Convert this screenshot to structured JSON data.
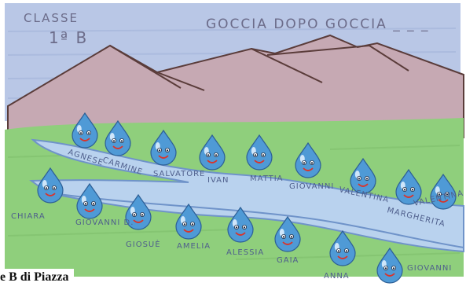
{
  "drawing": {
    "class_label": "CLASSE",
    "class_name": "1ª B",
    "title": "GOCCIA DOPO GOCCIA _ _ _",
    "palette": {
      "sky": "#b9c7e6",
      "mountain": "#c6a9b3",
      "mountain_outline": "#5a3c3a",
      "meadow": "#8fcf7c",
      "river": "#b9d2ee",
      "drop": "#4f9ad6",
      "smile": "#d9342b"
    },
    "names": [
      "AGNESE",
      "CARMINE",
      "SALVATORE",
      "IVAN",
      "MATTIA",
      "GIOVANNI",
      "VALENTINA",
      "MARGHERITA",
      "VALENTINA",
      "CHIARA",
      "GIOVANNI D.",
      "GIOSUÈ",
      "AMELIA",
      "ALESSIA",
      "GAIA",
      "ANNA",
      "GIOVANNI"
    ],
    "drop_count": 20,
    "icon": "water-drop-face"
  },
  "caption": "e B di Piazza"
}
